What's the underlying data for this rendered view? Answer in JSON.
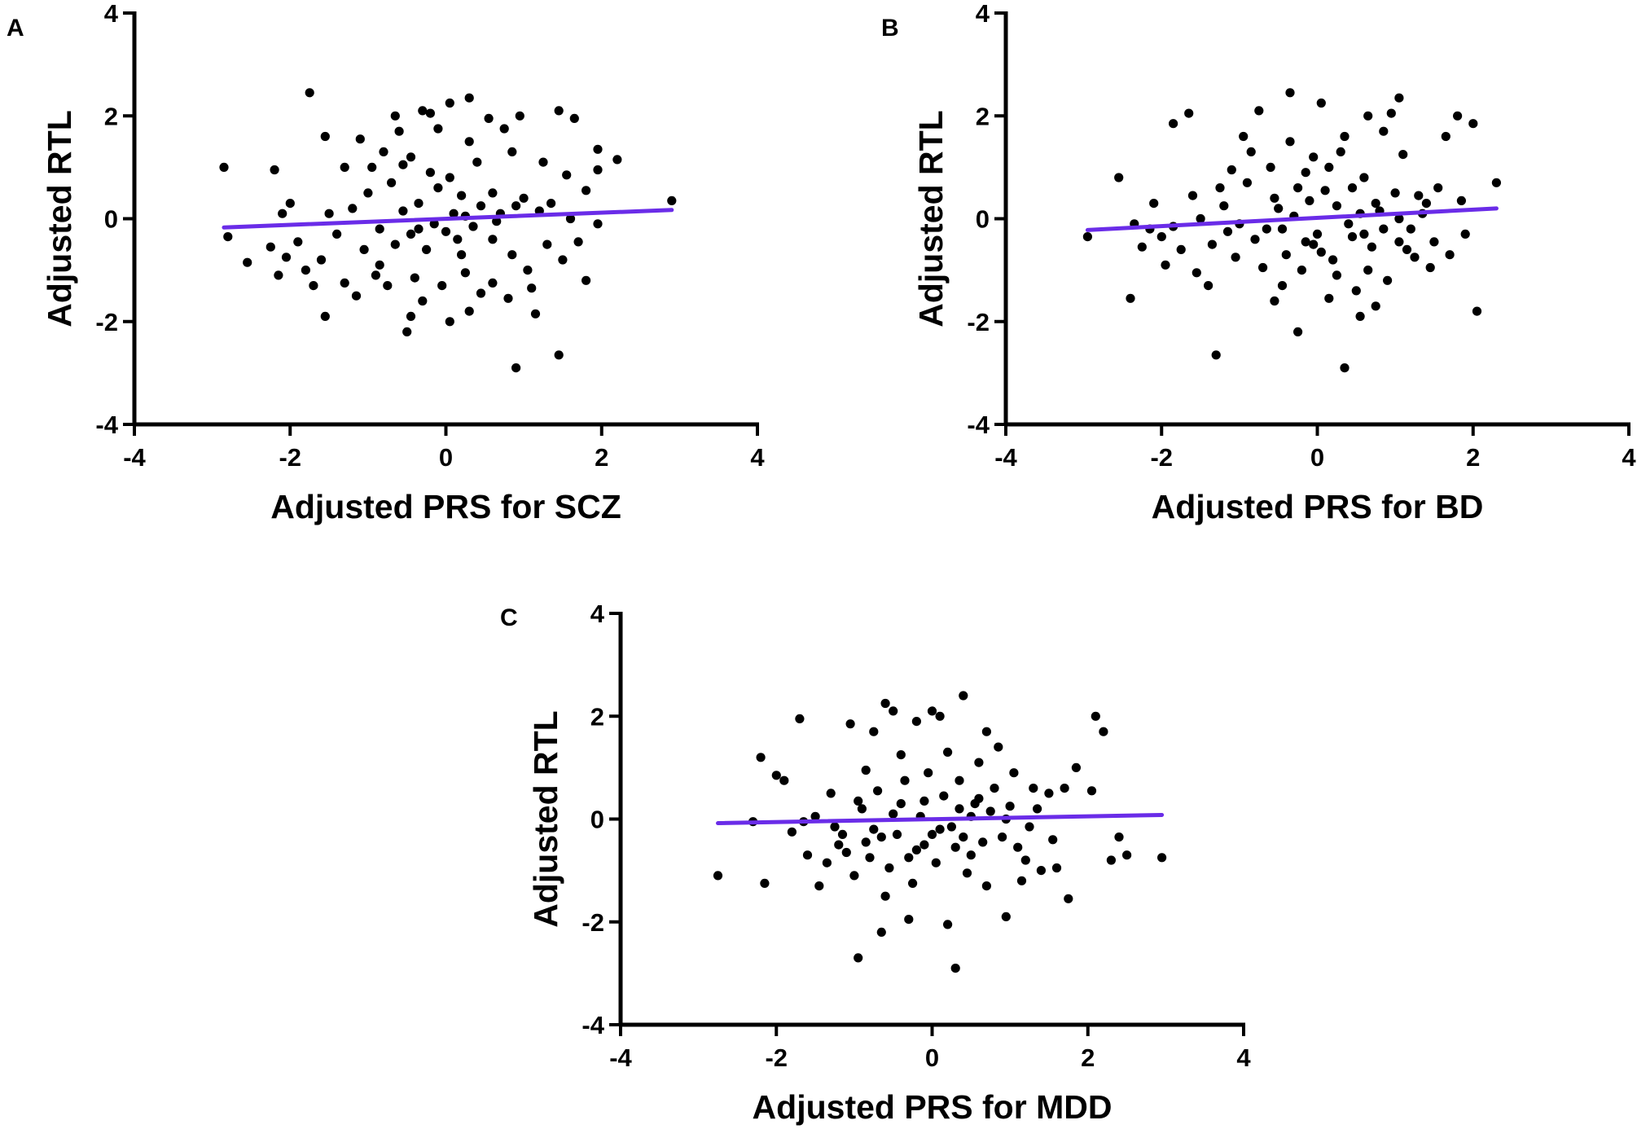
{
  "colors": {
    "points": "#000000",
    "fit_line": "#6a2ce8",
    "axes": "#000000"
  },
  "chart_data": [
    {
      "panel": "A",
      "type": "scatter",
      "xlabel": "Adjusted PRS for SCZ",
      "ylabel": "Adjusted RTL",
      "xlim": [
        -4,
        4
      ],
      "ylim": [
        -4,
        4
      ],
      "xticks": [
        -4,
        -2,
        0,
        2,
        4
      ],
      "yticks": [
        -4,
        -2,
        0,
        2,
        4
      ],
      "xtick_labels": [
        "-4",
        "-2",
        "0",
        "2",
        "4"
      ],
      "ytick_labels": [
        "-4",
        "-2",
        "0",
        "2",
        "4"
      ],
      "fit_line": {
        "x": [
          -2.85,
          2.9
        ],
        "y": [
          -0.17,
          0.17
        ]
      },
      "points": [
        [
          -1.75,
          2.45
        ],
        [
          -2.85,
          1.0
        ],
        [
          -2.2,
          0.95
        ],
        [
          -1.55,
          1.6
        ],
        [
          -1.1,
          1.55
        ],
        [
          -1.3,
          1.0
        ],
        [
          -2.8,
          -0.35
        ],
        [
          -2.55,
          -0.85
        ],
        [
          -2.25,
          -0.55
        ],
        [
          -2.15,
          -1.1
        ],
        [
          -1.8,
          -1.0
        ],
        [
          -1.6,
          -0.8
        ],
        [
          -1.7,
          -1.3
        ],
        [
          -1.55,
          -1.9
        ],
        [
          -1.3,
          -1.25
        ],
        [
          -1.15,
          -1.5
        ],
        [
          -1.05,
          -0.6
        ],
        [
          -0.9,
          -1.1
        ],
        [
          -0.85,
          -0.2
        ],
        [
          -1.2,
          0.2
        ],
        [
          -1.4,
          -0.3
        ],
        [
          -2.0,
          0.3
        ],
        [
          -2.1,
          0.1
        ],
        [
          -0.7,
          0.7
        ],
        [
          -0.55,
          1.05
        ],
        [
          -0.6,
          1.7
        ],
        [
          -0.3,
          2.1
        ],
        [
          -0.2,
          2.05
        ],
        [
          0.05,
          2.25
        ],
        [
          0.3,
          2.35
        ],
        [
          0.55,
          1.95
        ],
        [
          0.75,
          1.75
        ],
        [
          0.95,
          2.0
        ],
        [
          1.45,
          2.1
        ],
        [
          1.65,
          1.95
        ],
        [
          1.95,
          1.35
        ],
        [
          2.2,
          1.15
        ],
        [
          1.95,
          0.95
        ],
        [
          1.55,
          0.85
        ],
        [
          1.8,
          0.55
        ],
        [
          0.4,
          1.1
        ],
        [
          0.6,
          0.5
        ],
        [
          0.2,
          0.45
        ],
        [
          -0.1,
          0.6
        ],
        [
          -0.35,
          0.3
        ],
        [
          -0.45,
          -0.3
        ],
        [
          -0.25,
          -0.6
        ],
        [
          0.0,
          -0.25
        ],
        [
          0.2,
          -0.7
        ],
        [
          0.35,
          -0.15
        ],
        [
          0.6,
          -0.4
        ],
        [
          0.85,
          -0.7
        ],
        [
          1.05,
          -1.0
        ],
        [
          1.3,
          -0.5
        ],
        [
          1.5,
          -0.8
        ],
        [
          1.8,
          -1.2
        ],
        [
          1.6,
          0.0
        ],
        [
          1.95,
          -0.1
        ],
        [
          1.2,
          0.15
        ],
        [
          0.9,
          0.25
        ],
        [
          0.7,
          0.1
        ],
        [
          -0.65,
          -0.5
        ],
        [
          -0.85,
          -0.9
        ],
        [
          -0.75,
          -1.3
        ],
        [
          -0.4,
          -1.15
        ],
        [
          -0.05,
          -1.3
        ],
        [
          0.25,
          -1.05
        ],
        [
          0.45,
          -1.45
        ],
        [
          0.8,
          -1.55
        ],
        [
          1.1,
          -1.35
        ],
        [
          0.3,
          -1.8
        ],
        [
          -0.3,
          -1.6
        ],
        [
          -0.5,
          -2.2
        ],
        [
          -0.45,
          -1.9
        ],
        [
          0.05,
          -2.0
        ],
        [
          0.9,
          -2.9
        ],
        [
          1.45,
          -2.65
        ],
        [
          1.15,
          -1.85
        ],
        [
          0.6,
          -1.25
        ],
        [
          -1.0,
          0.5
        ],
        [
          -0.95,
          1.0
        ],
        [
          -0.8,
          1.3
        ],
        [
          -0.65,
          2.0
        ],
        [
          -0.45,
          1.2
        ],
        [
          -0.2,
          0.9
        ],
        [
          0.05,
          0.8
        ],
        [
          0.25,
          0.05
        ],
        [
          -0.15,
          -0.1
        ],
        [
          0.1,
          0.1
        ],
        [
          0.45,
          0.25
        ],
        [
          -0.55,
          0.15
        ],
        [
          -0.35,
          -0.2
        ],
        [
          0.15,
          -0.4
        ],
        [
          0.65,
          -0.05
        ],
        [
          1.0,
          0.4
        ],
        [
          1.35,
          0.3
        ],
        [
          1.7,
          -0.45
        ],
        [
          -1.5,
          0.1
        ],
        [
          -1.9,
          -0.45
        ],
        [
          -2.05,
          -0.75
        ],
        [
          0.3,
          1.5
        ],
        [
          -0.1,
          1.75
        ],
        [
          0.85,
          1.3
        ],
        [
          1.25,
          1.1
        ],
        [
          2.9,
          0.35
        ]
      ]
    },
    {
      "panel": "B",
      "type": "scatter",
      "xlabel": "Adjusted PRS for BD",
      "ylabel": "Adjusted RTL",
      "xlim": [
        -4,
        4
      ],
      "ylim": [
        -4,
        4
      ],
      "xticks": [
        -4,
        -2,
        0,
        2,
        4
      ],
      "yticks": [
        -4,
        -2,
        0,
        2,
        4
      ],
      "xtick_labels": [
        "-4",
        "-2",
        "0",
        "2",
        "4"
      ],
      "ytick_labels": [
        "-4",
        "-2",
        "0",
        "2",
        "4"
      ],
      "fit_line": {
        "x": [
          -2.95,
          2.3
        ],
        "y": [
          -0.22,
          0.2
        ]
      },
      "points": [
        [
          -2.95,
          -0.35
        ],
        [
          -2.55,
          0.8
        ],
        [
          -2.4,
          -1.55
        ],
        [
          -2.25,
          -0.55
        ],
        [
          -2.1,
          0.3
        ],
        [
          -1.95,
          -0.9
        ],
        [
          -1.85,
          1.85
        ],
        [
          -1.65,
          2.05
        ],
        [
          -1.55,
          -1.05
        ],
        [
          -1.35,
          -0.5
        ],
        [
          -1.3,
          -2.65
        ],
        [
          -1.2,
          0.25
        ],
        [
          -1.05,
          -0.75
        ],
        [
          -0.95,
          1.6
        ],
        [
          -0.85,
          1.3
        ],
        [
          -0.75,
          2.1
        ],
        [
          -0.65,
          -0.2
        ],
        [
          -0.55,
          0.4
        ],
        [
          -0.45,
          -1.3
        ],
        [
          -0.35,
          2.45
        ],
        [
          -0.25,
          -2.2
        ],
        [
          -0.15,
          0.9
        ],
        [
          -0.05,
          -0.5
        ],
        [
          0.05,
          2.25
        ],
        [
          0.15,
          1.0
        ],
        [
          0.25,
          -1.1
        ],
        [
          0.35,
          -2.9
        ],
        [
          0.45,
          0.6
        ],
        [
          0.55,
          -1.9
        ],
        [
          0.65,
          2.0
        ],
        [
          0.75,
          0.3
        ],
        [
          0.85,
          1.7
        ],
        [
          0.95,
          2.05
        ],
        [
          1.05,
          2.35
        ],
        [
          1.15,
          -0.6
        ],
        [
          1.3,
          0.45
        ],
        [
          1.45,
          -0.95
        ],
        [
          1.55,
          0.6
        ],
        [
          1.65,
          1.6
        ],
        [
          1.8,
          2.0
        ],
        [
          1.9,
          -0.3
        ],
        [
          2.0,
          1.85
        ],
        [
          2.05,
          -1.8
        ],
        [
          2.3,
          0.7
        ],
        [
          -2.15,
          -0.2
        ],
        [
          -1.75,
          -0.6
        ],
        [
          -1.5,
          0.0
        ],
        [
          -1.15,
          -0.25
        ],
        [
          -0.9,
          0.7
        ],
        [
          -0.7,
          -0.95
        ],
        [
          -0.6,
          1.0
        ],
        [
          -0.4,
          -0.7
        ],
        [
          -0.3,
          0.05
        ],
        [
          -0.2,
          -1.0
        ],
        [
          -0.1,
          0.35
        ],
        [
          0.0,
          -0.3
        ],
        [
          0.1,
          0.55
        ],
        [
          0.2,
          -0.8
        ],
        [
          0.3,
          1.3
        ],
        [
          0.4,
          -0.1
        ],
        [
          0.5,
          -1.4
        ],
        [
          0.6,
          0.8
        ],
        [
          0.7,
          -0.55
        ],
        [
          0.8,
          0.15
        ],
        [
          0.9,
          -1.2
        ],
        [
          1.0,
          0.5
        ],
        [
          1.1,
          1.25
        ],
        [
          1.2,
          -0.2
        ],
        [
          1.35,
          0.1
        ],
        [
          1.5,
          -0.45
        ],
        [
          1.7,
          -0.7
        ],
        [
          1.85,
          0.35
        ],
        [
          -1.85,
          -0.15
        ],
        [
          -1.6,
          0.45
        ],
        [
          -1.4,
          -1.3
        ],
        [
          -1.0,
          -0.1
        ],
        [
          -0.8,
          -0.4
        ],
        [
          -0.5,
          0.2
        ],
        [
          -0.25,
          0.6
        ],
        [
          0.05,
          -0.65
        ],
        [
          0.25,
          0.25
        ],
        [
          0.45,
          -0.35
        ],
        [
          0.65,
          -1.0
        ],
        [
          0.85,
          -0.2
        ],
        [
          1.05,
          0.0
        ],
        [
          1.25,
          -0.75
        ],
        [
          1.4,
          0.3
        ],
        [
          -2.35,
          -0.1
        ],
        [
          -2.0,
          -0.35
        ],
        [
          -1.25,
          0.6
        ],
        [
          -0.55,
          -1.6
        ],
        [
          -0.35,
          1.5
        ],
        [
          0.15,
          -1.55
        ],
        [
          0.35,
          1.6
        ],
        [
          0.55,
          0.1
        ],
        [
          0.75,
          -1.7
        ],
        [
          1.05,
          -0.45
        ],
        [
          -0.05,
          1.2
        ],
        [
          -0.45,
          -0.2
        ],
        [
          0.6,
          -0.3
        ],
        [
          -1.1,
          0.95
        ],
        [
          -0.15,
          -0.45
        ]
      ]
    },
    {
      "panel": "C",
      "type": "scatter",
      "xlabel": "Adjusted PRS for MDD",
      "ylabel": "Adjusted RTL",
      "xlim": [
        -4,
        4
      ],
      "ylim": [
        -4,
        4
      ],
      "xticks": [
        -4,
        -2,
        0,
        2,
        4
      ],
      "yticks": [
        -4,
        -2,
        0,
        2,
        4
      ],
      "xtick_labels": [
        "-4",
        "-2",
        "0",
        "2",
        "4"
      ],
      "ytick_labels": [
        "-4",
        "-2",
        "0",
        "2",
        "4"
      ],
      "fit_line": {
        "x": [
          -2.75,
          2.95
        ],
        "y": [
          -0.08,
          0.08
        ]
      },
      "points": [
        [
          -2.75,
          -1.1
        ],
        [
          -2.2,
          1.2
        ],
        [
          -2.15,
          -1.25
        ],
        [
          -2.0,
          0.85
        ],
        [
          -1.9,
          0.75
        ],
        [
          -1.7,
          1.95
        ],
        [
          -1.6,
          -0.7
        ],
        [
          -1.45,
          -1.3
        ],
        [
          -1.3,
          0.5
        ],
        [
          -1.15,
          -0.3
        ],
        [
          -1.05,
          1.85
        ],
        [
          -0.95,
          -2.7
        ],
        [
          -0.85,
          0.95
        ],
        [
          -0.75,
          1.7
        ],
        [
          -0.65,
          -2.2
        ],
        [
          -0.6,
          2.25
        ],
        [
          -0.5,
          2.1
        ],
        [
          -0.4,
          0.3
        ],
        [
          -0.3,
          -1.95
        ],
        [
          -0.2,
          1.9
        ],
        [
          -0.1,
          -0.5
        ],
        [
          0.0,
          2.1
        ],
        [
          0.1,
          2.0
        ],
        [
          0.2,
          -2.05
        ],
        [
          0.3,
          -2.9
        ],
        [
          0.4,
          2.4
        ],
        [
          0.5,
          -0.7
        ],
        [
          0.6,
          1.1
        ],
        [
          0.7,
          1.7
        ],
        [
          0.85,
          1.4
        ],
        [
          0.95,
          -1.9
        ],
        [
          1.05,
          0.9
        ],
        [
          1.2,
          -0.8
        ],
        [
          1.35,
          0.2
        ],
        [
          1.5,
          0.5
        ],
        [
          1.6,
          -0.95
        ],
        [
          1.7,
          0.6
        ],
        [
          1.75,
          -1.55
        ],
        [
          1.85,
          1.0
        ],
        [
          2.05,
          0.55
        ],
        [
          2.1,
          2.0
        ],
        [
          2.2,
          1.7
        ],
        [
          2.3,
          -0.8
        ],
        [
          2.4,
          -0.35
        ],
        [
          2.5,
          -0.7
        ],
        [
          2.95,
          -0.75
        ],
        [
          -1.8,
          -0.25
        ],
        [
          -1.5,
          0.05
        ],
        [
          -1.35,
          -0.85
        ],
        [
          -1.2,
          -0.5
        ],
        [
          -1.0,
          -1.1
        ],
        [
          -0.9,
          0.2
        ],
        [
          -0.8,
          -0.75
        ],
        [
          -0.7,
          0.55
        ],
        [
          -0.55,
          -0.95
        ],
        [
          -0.45,
          -0.3
        ],
        [
          -0.35,
          0.75
        ],
        [
          -0.25,
          -1.25
        ],
        [
          -0.15,
          0.05
        ],
        [
          -0.05,
          0.9
        ],
        [
          0.05,
          -0.85
        ],
        [
          0.15,
          0.45
        ],
        [
          0.25,
          -0.15
        ],
        [
          0.35,
          0.75
        ],
        [
          0.45,
          -1.05
        ],
        [
          0.55,
          0.3
        ],
        [
          0.65,
          -0.45
        ],
        [
          0.75,
          0.15
        ],
        [
          0.9,
          -0.35
        ],
        [
          1.0,
          0.25
        ],
        [
          1.1,
          -0.55
        ],
        [
          1.25,
          -0.15
        ],
        [
          1.4,
          -1.0
        ],
        [
          1.55,
          -0.4
        ],
        [
          -1.65,
          -0.05
        ],
        [
          -1.25,
          -0.15
        ],
        [
          -0.95,
          0.35
        ],
        [
          -0.85,
          -0.45
        ],
        [
          -0.6,
          -1.5
        ],
        [
          -0.4,
          1.25
        ],
        [
          -0.2,
          -0.6
        ],
        [
          0.0,
          -0.3
        ],
        [
          0.2,
          1.3
        ],
        [
          0.3,
          -0.55
        ],
        [
          0.5,
          0.05
        ],
        [
          0.7,
          -1.3
        ],
        [
          0.8,
          0.6
        ],
        [
          1.15,
          -1.2
        ],
        [
          1.3,
          0.6
        ],
        [
          -1.1,
          -0.65
        ],
        [
          -0.75,
          -0.2
        ],
        [
          -0.5,
          0.1
        ],
        [
          -0.3,
          -0.75
        ],
        [
          -0.1,
          0.35
        ],
        [
          0.1,
          -0.2
        ],
        [
          0.4,
          -0.35
        ],
        [
          0.6,
          0.4
        ],
        [
          0.95,
          0.0
        ],
        [
          -0.65,
          -0.35
        ],
        [
          0.35,
          0.2
        ],
        [
          -2.3,
          -0.05
        ]
      ]
    }
  ]
}
